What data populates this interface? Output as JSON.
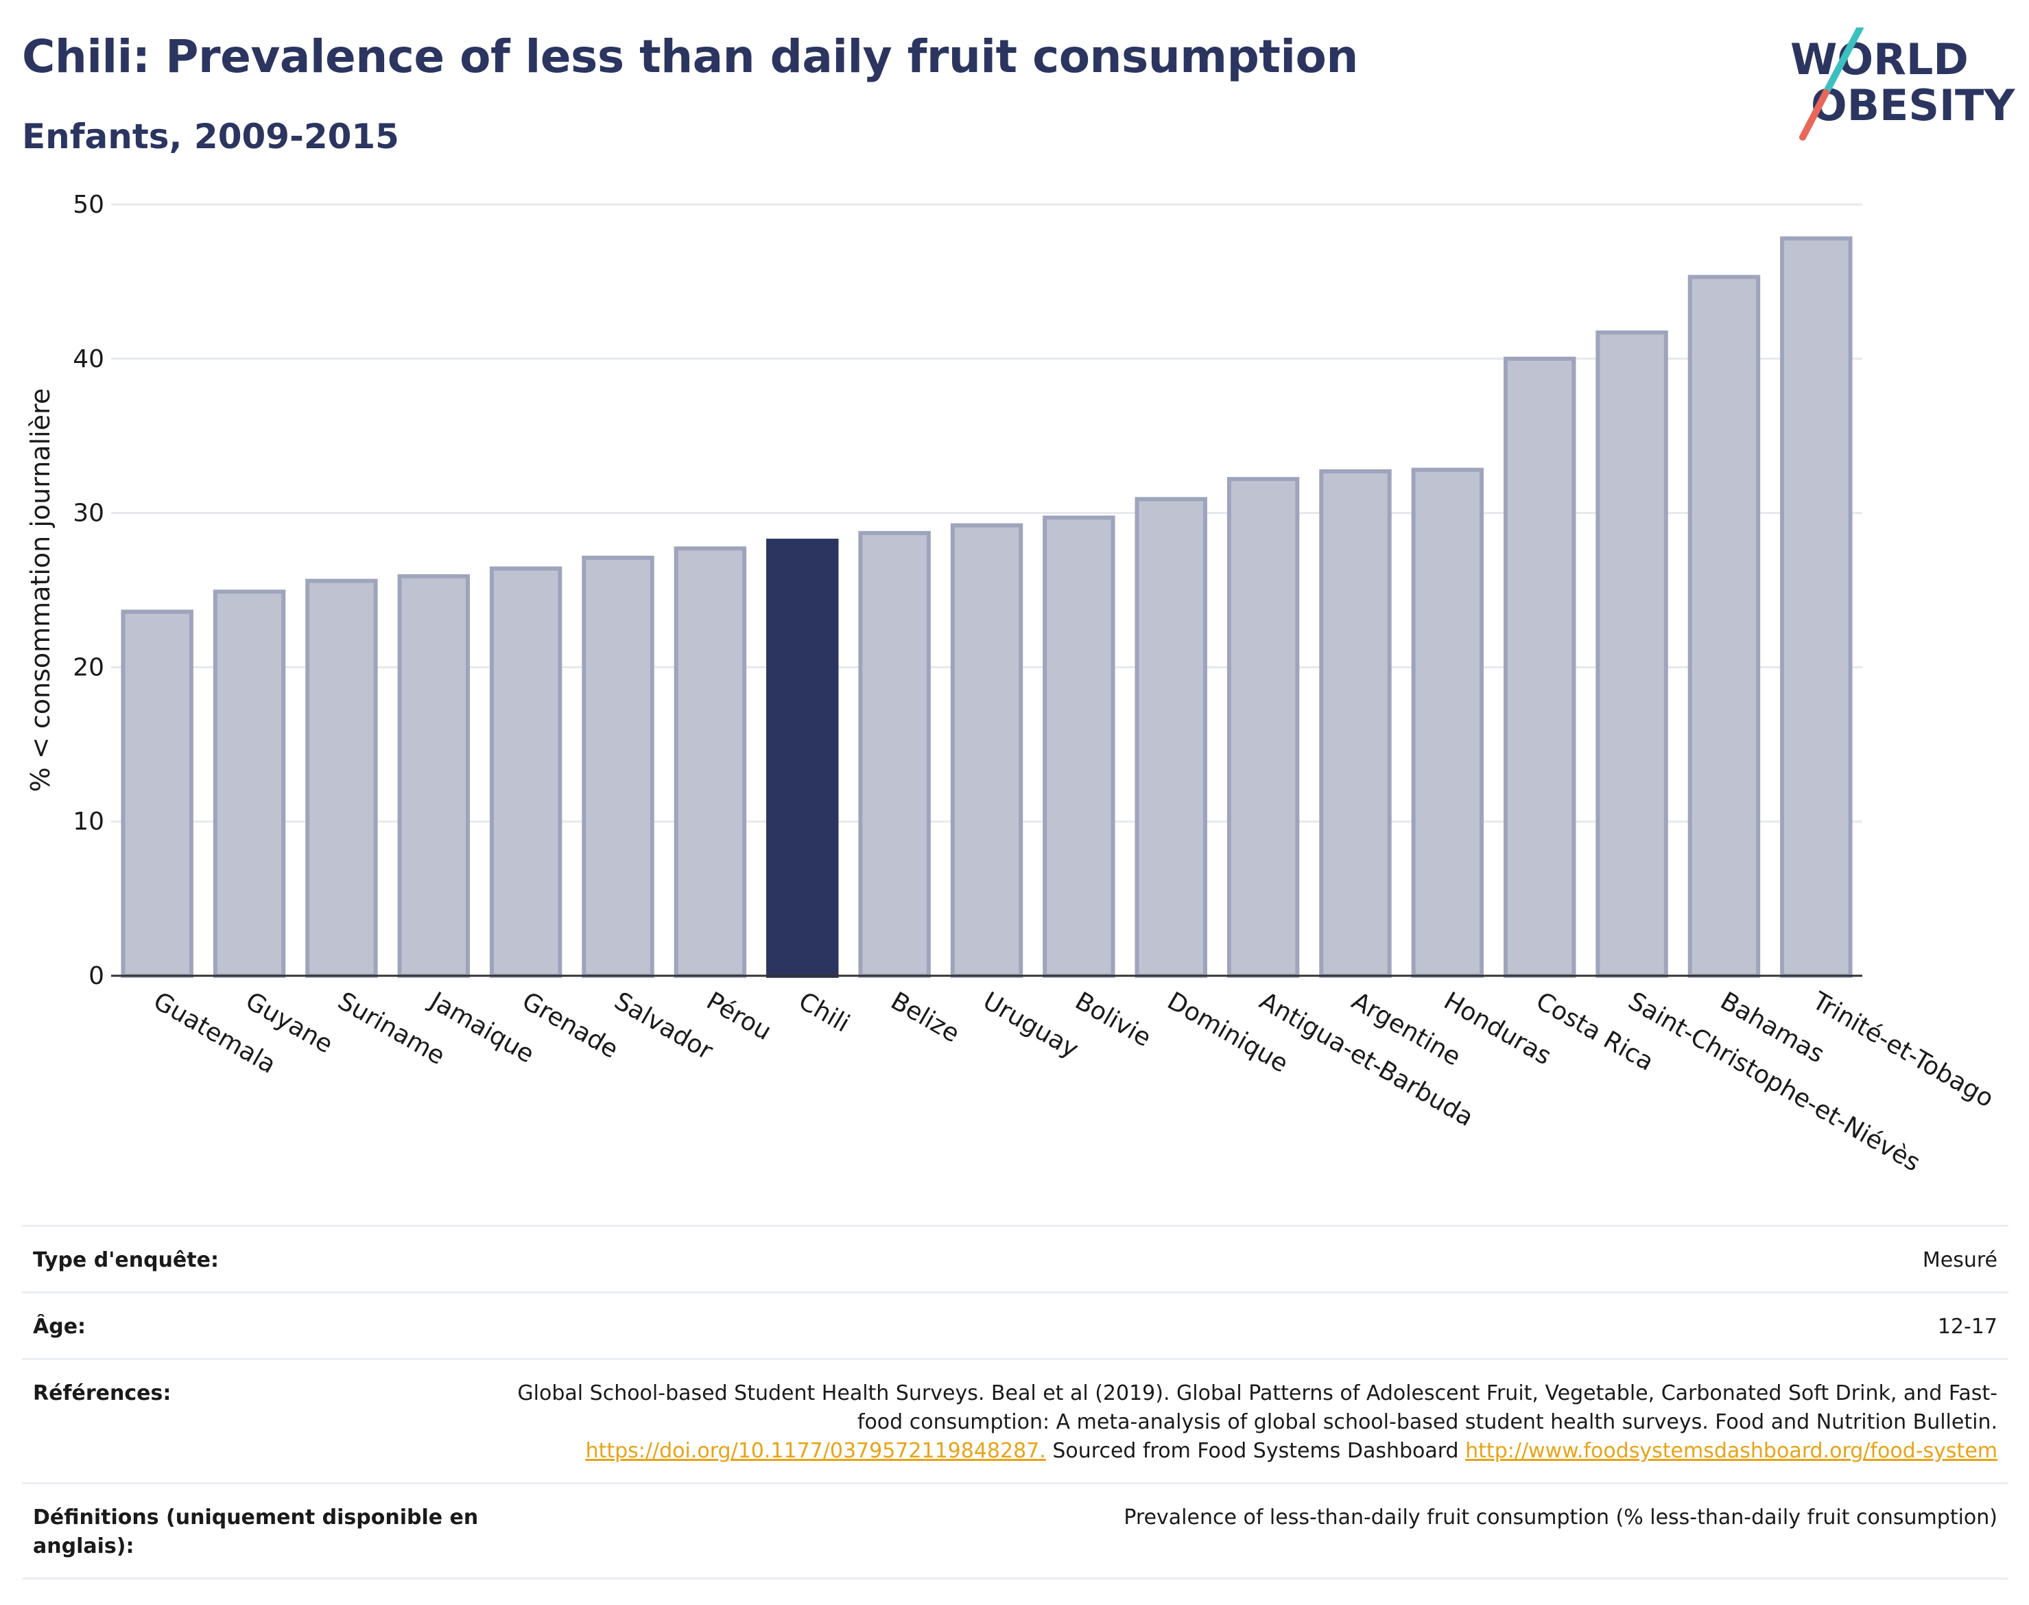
{
  "header": {
    "title": "Chili: Prevalence of less than daily fruit consumption",
    "subtitle": "Enfants, 2009-2015"
  },
  "logo": {
    "line1": "WORLD",
    "line2": "OBESITY"
  },
  "colors": {
    "highlight": "#2b3560",
    "bar": "#bfc3d1",
    "bar_edge": "#9ea4bc",
    "title": "#2b3560",
    "link": "#e8a317"
  },
  "chart_data": {
    "type": "bar",
    "categories": [
      "Guatemala",
      "Guyane",
      "Suriname",
      "Jamaique",
      "Grenade",
      "Salvador",
      "Pérou",
      "Chili",
      "Belize",
      "Uruguay",
      "Bolivie",
      "Dominique",
      "Antigua-et-Barbuda",
      "Argentine",
      "Honduras",
      "Costa Rica",
      "Saint-Christophe-et-Niévès",
      "Bahamas",
      "Trinité-et-Tobago"
    ],
    "values": [
      23.6,
      24.9,
      25.6,
      25.9,
      26.4,
      27.1,
      27.7,
      28.2,
      28.7,
      29.2,
      29.7,
      30.9,
      32.2,
      32.7,
      32.8,
      40.0,
      41.7,
      45.3,
      47.8
    ],
    "highlight": "Chili",
    "ylabel": "% < consommation journalière",
    "ylim": [
      0,
      50
    ],
    "yticks": [
      0,
      10,
      20,
      30,
      40,
      50
    ],
    "grid": true
  },
  "meta": {
    "survey_label": "Type d'enquête:",
    "survey_value": "Mesuré",
    "age_label": "Âge:",
    "age_value": "12-17",
    "refs_label": "Références:",
    "refs_text_1": "Global School-based Student Health Surveys. Beal et al (2019). Global Patterns of Adolescent Fruit, Vegetable, Carbonated Soft Drink, and Fast-food consumption: A meta-analysis of global school-based student health surveys. Food and Nutrition Bulletin.",
    "refs_link_1": "https://doi.org/10.1177/0379572119848287.",
    "refs_text_2": "Sourced from Food Systems Dashboard",
    "refs_link_2": "http://www.foodsystemsdashboard.org/food-system",
    "defs_label": "Définitions (uniquement disponible en anglais):",
    "defs_value": "Prevalence of less-than-daily fruit consumption (% less-than-daily fruit consumption)"
  }
}
